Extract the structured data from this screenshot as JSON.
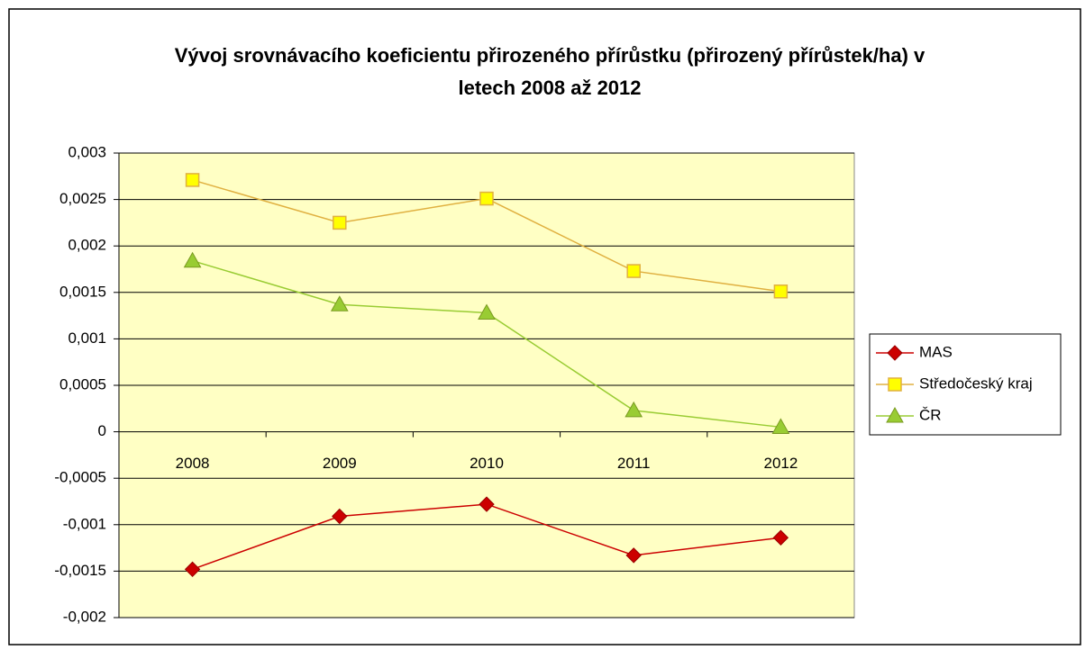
{
  "chart_data": {
    "type": "line",
    "title": "Vývoj srovnávacího koeficientu přirozeného přírůstku (přirozený přírůstek/ha) v letech 2008 až 2012",
    "categories": [
      "2008",
      "2009",
      "2010",
      "2011",
      "2012"
    ],
    "series": [
      {
        "name": "MAS",
        "color": "#cc0000",
        "marker": "diamond",
        "values": [
          -0.00148,
          -0.00091,
          -0.00078,
          -0.00133,
          -0.00114
        ]
      },
      {
        "name": "Středočeský kraj",
        "color": "#e0b040",
        "marker": "square",
        "values": [
          0.00271,
          0.00225,
          0.00251,
          0.00173,
          0.00151
        ]
      },
      {
        "name": "ČR",
        "color": "#99cc33",
        "marker": "triangle",
        "values": [
          0.00184,
          0.00137,
          0.00128,
          0.00023,
          5e-05
        ]
      }
    ],
    "ylim": [
      -0.002,
      0.003
    ],
    "yticks": [
      {
        "value": -0.002,
        "label": "-0,002"
      },
      {
        "value": -0.0015,
        "label": "-0,0015"
      },
      {
        "value": -0.001,
        "label": "-0,001"
      },
      {
        "value": -0.0005,
        "label": "-0,0005"
      },
      0,
      {
        "value": 0.0005,
        "label": "0,0005"
      },
      {
        "value": 0.001,
        "label": "0,001"
      },
      {
        "value": 0.0015,
        "label": "0,0015"
      },
      {
        "value": 0.002,
        "label": "0,002"
      },
      {
        "value": 0.0025,
        "label": "0,0025"
      },
      {
        "value": 0.003,
        "label": "0,003"
      }
    ],
    "grid": true,
    "legend": "right"
  }
}
